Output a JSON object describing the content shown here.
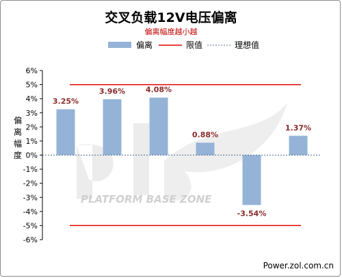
{
  "chart_data": {
    "type": "bar",
    "title": "交叉负载12V电压偏离",
    "subtitle": "偏离幅度越小越",
    "ylabel": "偏离幅度",
    "ylim": [
      -6,
      6
    ],
    "yticks": [
      6,
      5,
      4,
      3,
      2,
      1,
      0,
      -1,
      -2,
      -3,
      -4,
      -5,
      -6
    ],
    "ytick_labels": [
      "6%",
      "5%",
      "4%",
      "3%",
      "2%",
      "1%",
      "0%",
      "-1%",
      "-2%",
      "-3%",
      "-4%",
      "-5%",
      "-6%"
    ],
    "series": [
      {
        "name": "偏离",
        "values": [
          3.25,
          3.96,
          4.08,
          0.88,
          -3.54,
          1.37
        ],
        "labels": [
          "3.25%",
          "3.96%",
          "4.08%",
          "0.88%",
          "-3.54%",
          "1.37%"
        ]
      }
    ],
    "limit_lines": {
      "name": "限值",
      "values": [
        5,
        -5
      ]
    },
    "ideal_line": {
      "name": "理想值",
      "value": 0
    },
    "colors": {
      "bar": "#95b3d7",
      "limit": "#e00000",
      "ideal": "#4f6d8f",
      "label": "#8a2a2a"
    },
    "grid": false,
    "legend_position": "top"
  },
  "watermark": {
    "text": "PLATFORM BASE ZONE"
  },
  "footer": {
    "source": "Power.zol.com.cn"
  }
}
